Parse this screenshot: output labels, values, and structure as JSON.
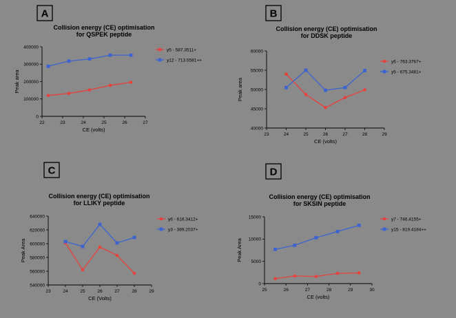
{
  "chart_data": [
    {
      "type": "line",
      "panel": "A",
      "title": [
        "Collision energy (CE) optimisation",
        "for QSPEK peptide"
      ],
      "xlabel": "CE (volts)",
      "ylabel": "Peak area",
      "xlim": [
        22,
        27
      ],
      "ylim": [
        0,
        400000
      ],
      "xticks": [
        22,
        23,
        24,
        25,
        26,
        27
      ],
      "xtick_labels": [
        "22",
        "23",
        "24",
        "25",
        "26",
        "27"
      ],
      "yticks": [
        0,
        100000,
        200000,
        300000,
        400000
      ],
      "ytick_labels": [
        "0",
        "100000",
        "200000",
        "300000",
        "400000"
      ],
      "legend_position": "right",
      "series": [
        {
          "name": "y5 - 587.3511+",
          "color": "#e8413c",
          "marker": "circle",
          "x": [
            22.3,
            23.3,
            24.3,
            25.3,
            26.3
          ],
          "y": [
            120000,
            132000,
            152000,
            178000,
            196000
          ]
        },
        {
          "name": "y12 - 713.5581++",
          "color": "#3c63d0",
          "marker": "square",
          "x": [
            22.3,
            23.3,
            24.3,
            25.3,
            26.3
          ],
          "y": [
            288000,
            318000,
            330000,
            352000,
            352000
          ]
        }
      ]
    },
    {
      "type": "line",
      "panel": "B",
      "title": [
        "Collision energy (CE) optimisation",
        "for DDSK peptide"
      ],
      "xlabel": "CE (volts)",
      "ylabel": "Peak area",
      "xlim": [
        23,
        29
      ],
      "ylim": [
        40000,
        60000
      ],
      "xticks": [
        23,
        24,
        25,
        26,
        27,
        28,
        29
      ],
      "xtick_labels": [
        "23",
        "24",
        "25",
        "26",
        "27",
        "28",
        "29"
      ],
      "yticks": [
        40000,
        45000,
        50000,
        55000,
        60000
      ],
      "ytick_labels": [
        "40000",
        "45000",
        "50000",
        "55000",
        "60000"
      ],
      "legend_position": "right",
      "series": [
        {
          "name": "y6 - 763.3767+",
          "color": "#e8413c",
          "marker": "circle",
          "x": [
            24,
            25,
            26,
            27,
            28
          ],
          "y": [
            54000,
            48700,
            45300,
            47900,
            49900
          ]
        },
        {
          "name": "y5 - 675.3481+",
          "color": "#3c63d0",
          "marker": "square",
          "x": [
            24,
            25,
            26,
            27,
            28
          ],
          "y": [
            50500,
            55000,
            49800,
            50500,
            54900
          ]
        }
      ]
    },
    {
      "type": "line",
      "panel": "C",
      "title": [
        "Collision energy (CE) optimisation",
        "for LLIKY peptide"
      ],
      "xlabel": "CE (Volts)",
      "ylabel": "Peak Area",
      "xlim": [
        23,
        29
      ],
      "ylim": [
        540000,
        640000
      ],
      "xticks": [
        23,
        24,
        25,
        26,
        27,
        28,
        29
      ],
      "xtick_labels": [
        "23",
        "24",
        "25",
        "26",
        "27",
        "28",
        "29"
      ],
      "yticks": [
        540000,
        560000,
        580000,
        600000,
        620000,
        640000
      ],
      "ytick_labels": [
        "540000",
        "560000",
        "580000",
        "600000",
        "620000",
        "640000"
      ],
      "legend_position": "right",
      "series": [
        {
          "name": "y6 - 616.3412+",
          "color": "#e8413c",
          "marker": "circle",
          "x": [
            24,
            25,
            26,
            27,
            28
          ],
          "y": [
            601000,
            562000,
            595000,
            583000,
            557000
          ]
        },
        {
          "name": "y3 - 389.2037+",
          "color": "#3c63d0",
          "marker": "square",
          "x": [
            24,
            25,
            26,
            27,
            28
          ],
          "y": [
            603000,
            596000,
            628000,
            601000,
            609000
          ]
        }
      ]
    },
    {
      "type": "line",
      "panel": "D",
      "title": [
        "Collision energy (CE) optimisation",
        "for SKSIN peptide"
      ],
      "xlabel": "CE (volts)",
      "ylabel": "Peak Area",
      "xlim": [
        25,
        30
      ],
      "ylim": [
        0,
        15000
      ],
      "xticks": [
        25,
        26,
        27,
        28,
        29,
        30
      ],
      "xtick_labels": [
        "25",
        "26",
        "27",
        "28",
        "29",
        "30"
      ],
      "yticks": [
        0,
        5000,
        10000,
        15000
      ],
      "ytick_labels": [
        "0",
        "5000",
        "10000",
        "15000"
      ],
      "legend_position": "right",
      "series": [
        {
          "name": "y7 - 746.4155+",
          "color": "#e8413c",
          "marker": "circle",
          "x": [
            25.5,
            26.4,
            27.4,
            28.4,
            29.4
          ],
          "y": [
            1100,
            1700,
            1600,
            2300,
            2400
          ]
        },
        {
          "name": "y15 - 819.4184++",
          "color": "#3c63d0",
          "marker": "square",
          "x": [
            25.5,
            26.4,
            27.4,
            28.4,
            29.4
          ],
          "y": [
            7700,
            8600,
            10300,
            11700,
            13100
          ]
        }
      ]
    }
  ]
}
